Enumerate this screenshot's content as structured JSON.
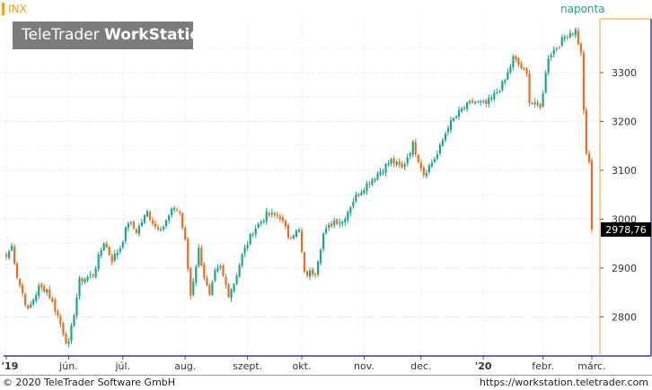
{
  "header": {
    "symbol": "INX",
    "period": "naponta",
    "logo_regular": "TeleTrader ",
    "logo_bold": "WorkStation"
  },
  "footer": {
    "copyright": "© 2020 TeleTrader Software GmbH",
    "url": "https://workstation.teletrader.com"
  },
  "colors": {
    "up": "#1aa58a",
    "down": "#f06a1c",
    "accent": "#f6a21c",
    "last_price_bg": "#000000"
  },
  "chart_data": {
    "type": "candlestick",
    "instrument": "INX",
    "interval": "naponta",
    "ylim": [
      2720,
      3410
    ],
    "y_ticks": [
      2800,
      2900,
      3000,
      3100,
      3200,
      3300
    ],
    "y_tick_labels": [
      "2800",
      "2900",
      "3000",
      "3100",
      "3200",
      "3300"
    ],
    "last_price": 2978.76,
    "last_price_label": "2978,76",
    "x_labels": [
      "'19",
      "jún.",
      "júl.",
      "aug.",
      "szept.",
      "okt.",
      "nov.",
      "dec.",
      "'20",
      "febr.",
      "márc."
    ],
    "x_label_dates": [
      "2019-05-01",
      "2019-06-03",
      "2019-07-01",
      "2019-08-01",
      "2019-09-03",
      "2019-10-01",
      "2019-11-01",
      "2019-12-02",
      "2020-01-02",
      "2020-02-03",
      "2020-03-02"
    ],
    "close_anchors": [
      [
        "2019-05-01",
        2923
      ],
      [
        "2019-05-03",
        2945
      ],
      [
        "2019-05-07",
        2884
      ],
      [
        "2019-05-13",
        2812
      ],
      [
        "2019-05-17",
        2860
      ],
      [
        "2019-05-22",
        2856
      ],
      [
        "2019-05-28",
        2802
      ],
      [
        "2019-05-31",
        2752
      ],
      [
        "2019-06-03",
        2744
      ],
      [
        "2019-06-07",
        2873
      ],
      [
        "2019-06-14",
        2887
      ],
      [
        "2019-06-20",
        2954
      ],
      [
        "2019-06-25",
        2917
      ],
      [
        "2019-06-28",
        2942
      ],
      [
        "2019-07-03",
        2995
      ],
      [
        "2019-07-08",
        2975
      ],
      [
        "2019-07-12",
        3014
      ],
      [
        "2019-07-17",
        2985
      ],
      [
        "2019-07-22",
        2985
      ],
      [
        "2019-07-26",
        3025
      ],
      [
        "2019-07-30",
        3013
      ],
      [
        "2019-08-01",
        2953
      ],
      [
        "2019-08-05",
        2844
      ],
      [
        "2019-08-08",
        2938
      ],
      [
        "2019-08-12",
        2883
      ],
      [
        "2019-08-14",
        2840
      ],
      [
        "2019-08-16",
        2889
      ],
      [
        "2019-08-20",
        2900
      ],
      [
        "2019-08-23",
        2847
      ],
      [
        "2019-08-27",
        2869
      ],
      [
        "2019-08-30",
        2926
      ],
      [
        "2019-09-05",
        2976
      ],
      [
        "2019-09-12",
        3009
      ],
      [
        "2019-09-19",
        3006
      ],
      [
        "2019-09-24",
        2966
      ],
      [
        "2019-09-30",
        2976
      ],
      [
        "2019-10-02",
        2887
      ],
      [
        "2019-10-08",
        2893
      ],
      [
        "2019-10-11",
        2970
      ],
      [
        "2019-10-17",
        2997
      ],
      [
        "2019-10-22",
        2995
      ],
      [
        "2019-10-28",
        3039
      ],
      [
        "2019-11-01",
        3066
      ],
      [
        "2019-11-08",
        3093
      ],
      [
        "2019-11-15",
        3120
      ],
      [
        "2019-11-21",
        3104
      ],
      [
        "2019-11-27",
        3153
      ],
      [
        "2019-12-03",
        3093
      ],
      [
        "2019-12-10",
        3132
      ],
      [
        "2019-12-16",
        3191
      ],
      [
        "2019-12-23",
        3224
      ],
      [
        "2019-12-27",
        3240
      ],
      [
        "2020-01-03",
        3235
      ],
      [
        "2020-01-08",
        3253
      ],
      [
        "2020-01-14",
        3283
      ],
      [
        "2020-01-17",
        3330
      ],
      [
        "2020-01-24",
        3295
      ],
      [
        "2020-01-27",
        3244
      ],
      [
        "2020-01-31",
        3226
      ],
      [
        "2020-02-05",
        3334
      ],
      [
        "2020-02-10",
        3352
      ],
      [
        "2020-02-14",
        3380
      ],
      [
        "2020-02-19",
        3386
      ],
      [
        "2020-02-21",
        3338
      ],
      [
        "2020-02-24",
        3225
      ],
      [
        "2020-02-25",
        3128
      ],
      [
        "2020-02-26",
        3116
      ],
      [
        "2020-02-27",
        2978.76
      ]
    ]
  }
}
